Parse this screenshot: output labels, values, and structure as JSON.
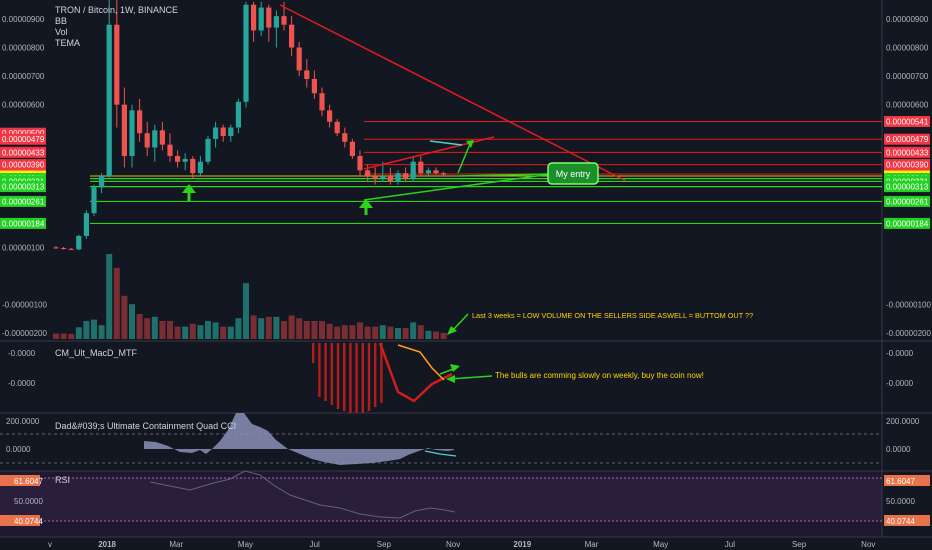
{
  "title": "TRON / Bitcoin, 1W, BINANCE",
  "overlays": [
    "BB",
    "Vol",
    "TEMA"
  ],
  "colors": {
    "bg": "#131722",
    "up": "#26a69a",
    "down": "#ef5350",
    "vol_up": "#1f6f6a",
    "vol_down": "#7a2d33",
    "green_line": "#2bd41b",
    "red_line": "#e21b1b",
    "badge_red": "#f23645",
    "badge_yellow": "#ffea00",
    "badge_green": "#22d122",
    "annotation": "#ffd500",
    "macd_bar": "#b71c1c",
    "cci_fill": "#8a91b5",
    "rsi_band": "#2a1e3d"
  },
  "axis": {
    "price_ticks": [
      "0.00000900",
      "0.00000800",
      "0.00000700",
      "0.00000600",
      "-0.00000100",
      "-0.00000200"
    ],
    "price_labels": [
      {
        "value": "0.00000541",
        "color": "red"
      },
      {
        "value": "0.00000479",
        "color": "red"
      },
      {
        "value": "0.00000433",
        "color": "red"
      },
      {
        "value": "0.00000390",
        "color": "red"
      },
      {
        "value": "0.00000357",
        "color": "red"
      },
      {
        "value": "0.00000350",
        "color": "yellow"
      },
      {
        "value": "0.00000341",
        "color": "green"
      },
      {
        "value": "0.00000331",
        "color": "green"
      },
      {
        "value": "0.00000313",
        "color": "green"
      },
      {
        "value": "0.00000261",
        "color": "green"
      },
      {
        "value": "0.00000184",
        "color": "green"
      }
    ],
    "left_partial_labels": [
      "0.00000900",
      "0.00000800",
      "0.00000700",
      "0.00000600",
      "0.00000500",
      "0.00000479",
      "0.00000433",
      "0.00000390",
      "0.00000357",
      "0.00000350",
      "0.00000341",
      "0.00000331",
      "0.00000313",
      "0.00000261",
      "0.00000184",
      "0.00000100",
      "-0.00000100",
      "-0.00000200"
    ],
    "time_labels": [
      "v",
      "2018",
      "Mar",
      "May",
      "Jul",
      "Sep",
      "Nov",
      "2019",
      "Mar",
      "May",
      "Jul",
      "Sep",
      "Nov"
    ],
    "time_labels_bold": [
      "2018",
      "2019"
    ]
  },
  "macd": {
    "name": "CM_Ult_MacD_MTF",
    "ticks": [
      "-0.0000",
      "-0.0000"
    ]
  },
  "cci": {
    "name": "Dad&#039;s Ultimate Containment Quad CCI",
    "ticks": [
      "200.0000",
      "0.0000"
    ]
  },
  "rsi": {
    "name": "RSI",
    "ticks": [
      "61.6047",
      "50.0000",
      "40.0744"
    ]
  },
  "annotations": {
    "volume_note": "Last 3 weeks = LOW VOLUME ON THE SELLERS SIDE ASWELL  = BUTTOM OUT ??",
    "macd_note": "The bulls are comming slowly on weekly, buy the coin now!",
    "entry_label": "My entry"
  },
  "chart_data": {
    "type": "candlestick",
    "title": "TRON / Bitcoin, 1W, BINANCE",
    "unit": "BTC",
    "candles": [
      {
        "t": "2017-11-06",
        "o": 1e-06,
        "h": 1.05e-06,
        "l": 9.5e-07,
        "c": 9.8e-07
      },
      {
        "t": "2017-11-13",
        "o": 9.8e-07,
        "h": 1.02e-06,
        "l": 9.2e-07,
        "c": 9.5e-07
      },
      {
        "t": "2017-11-20",
        "o": 9.5e-07,
        "h": 9.8e-07,
        "l": 9e-07,
        "c": 9.3e-07
      },
      {
        "t": "2017-11-27",
        "o": 9.3e-07,
        "h": 1.45e-06,
        "l": 9e-07,
        "c": 1.4e-06
      },
      {
        "t": "2017-12-04",
        "o": 1.4e-06,
        "h": 2.3e-06,
        "l": 1.3e-06,
        "c": 2.2e-06
      },
      {
        "t": "2017-12-11",
        "o": 2.2e-06,
        "h": 3.2e-06,
        "l": 2.1e-06,
        "c": 3.1e-06
      },
      {
        "t": "2017-12-18",
        "o": 3.1e-06,
        "h": 3.6e-06,
        "l": 2.9e-06,
        "c": 3.5e-06
      },
      {
        "t": "2017-12-25",
        "o": 3.5e-06,
        "h": 1e-05,
        "l": 3.4e-06,
        "c": 8.8e-06
      },
      {
        "t": "2018-01-01",
        "o": 8.8e-06,
        "h": 1e-05,
        "l": 5.2e-06,
        "c": 6e-06
      },
      {
        "t": "2018-01-08",
        "o": 6e-06,
        "h": 6.6e-06,
        "l": 3.8e-06,
        "c": 4.2e-06
      },
      {
        "t": "2018-01-15",
        "o": 4.2e-06,
        "h": 6e-06,
        "l": 3.8e-06,
        "c": 5.8e-06
      },
      {
        "t": "2018-01-22",
        "o": 5.8e-06,
        "h": 6.2e-06,
        "l": 4.7e-06,
        "c": 5e-06
      },
      {
        "t": "2018-01-29",
        "o": 5e-06,
        "h": 5.4e-06,
        "l": 4.2e-06,
        "c": 4.5e-06
      },
      {
        "t": "2018-02-05",
        "o": 4.5e-06,
        "h": 5.3e-06,
        "l": 4e-06,
        "c": 5.1e-06
      },
      {
        "t": "2018-02-12",
        "o": 5.1e-06,
        "h": 5.4e-06,
        "l": 4.4e-06,
        "c": 4.6e-06
      },
      {
        "t": "2018-02-19",
        "o": 4.6e-06,
        "h": 5e-06,
        "l": 4e-06,
        "c": 4.2e-06
      },
      {
        "t": "2018-02-26",
        "o": 4.2e-06,
        "h": 4.4e-06,
        "l": 3.8e-06,
        "c": 4e-06
      },
      {
        "t": "2018-03-05",
        "o": 4e-06,
        "h": 4.3e-06,
        "l": 3.7e-06,
        "c": 4.1e-06
      },
      {
        "t": "2018-03-12",
        "o": 4.1e-06,
        "h": 4.2e-06,
        "l": 3.4e-06,
        "c": 3.6e-06
      },
      {
        "t": "2018-03-19",
        "o": 3.6e-06,
        "h": 4.2e-06,
        "l": 3.5e-06,
        "c": 4e-06
      },
      {
        "t": "2018-03-26",
        "o": 4e-06,
        "h": 4.9e-06,
        "l": 3.9e-06,
        "c": 4.8e-06
      },
      {
        "t": "2018-04-02",
        "o": 4.8e-06,
        "h": 5.4e-06,
        "l": 4.5e-06,
        "c": 5.2e-06
      },
      {
        "t": "2018-04-09",
        "o": 5.2e-06,
        "h": 5.3e-06,
        "l": 4.7e-06,
        "c": 4.9e-06
      },
      {
        "t": "2018-04-16",
        "o": 4.9e-06,
        "h": 5.3e-06,
        "l": 4.7e-06,
        "c": 5.2e-06
      },
      {
        "t": "2018-04-23",
        "o": 5.2e-06,
        "h": 6.2e-06,
        "l": 5e-06,
        "c": 6.1e-06
      },
      {
        "t": "2018-04-30",
        "o": 6.1e-06,
        "h": 9.6e-06,
        "l": 5.9e-06,
        "c": 9.5e-06
      },
      {
        "t": "2018-05-07",
        "o": 9.5e-06,
        "h": 9.6e-06,
        "l": 8.2e-06,
        "c": 8.6e-06
      },
      {
        "t": "2018-05-14",
        "o": 8.6e-06,
        "h": 9.6e-06,
        "l": 8.4e-06,
        "c": 9.4e-06
      },
      {
        "t": "2018-05-21",
        "o": 9.4e-06,
        "h": 9.5e-06,
        "l": 8.2e-06,
        "c": 8.7e-06
      },
      {
        "t": "2018-05-28",
        "o": 8.7e-06,
        "h": 9.3e-06,
        "l": 8e-06,
        "c": 9.1e-06
      },
      {
        "t": "2018-06-04",
        "o": 9.1e-06,
        "h": 9.6e-06,
        "l": 8.6e-06,
        "c": 8.8e-06
      },
      {
        "t": "2018-06-11",
        "o": 8.8e-06,
        "h": 9.1e-06,
        "l": 7.7e-06,
        "c": 8e-06
      },
      {
        "t": "2018-06-18",
        "o": 8e-06,
        "h": 8.2e-06,
        "l": 7e-06,
        "c": 7.2e-06
      },
      {
        "t": "2018-06-25",
        "o": 7.2e-06,
        "h": 7.6e-06,
        "l": 6.6e-06,
        "c": 6.9e-06
      },
      {
        "t": "2018-07-02",
        "o": 6.9e-06,
        "h": 7.2e-06,
        "l": 6.2e-06,
        "c": 6.4e-06
      },
      {
        "t": "2018-07-09",
        "o": 6.4e-06,
        "h": 6.6e-06,
        "l": 5.6e-06,
        "c": 5.8e-06
      },
      {
        "t": "2018-07-16",
        "o": 5.8e-06,
        "h": 6e-06,
        "l": 5.2e-06,
        "c": 5.4e-06
      },
      {
        "t": "2018-07-23",
        "o": 5.4e-06,
        "h": 5.5e-06,
        "l": 4.9e-06,
        "c": 5e-06
      },
      {
        "t": "2018-07-30",
        "o": 5e-06,
        "h": 5.2e-06,
        "l": 4.5e-06,
        "c": 4.7e-06
      },
      {
        "t": "2018-08-06",
        "o": 4.7e-06,
        "h": 4.8e-06,
        "l": 4.1e-06,
        "c": 4.2e-06
      },
      {
        "t": "2018-08-13",
        "o": 4.2e-06,
        "h": 4.4e-06,
        "l": 3.5e-06,
        "c": 3.7e-06
      },
      {
        "t": "2018-08-20",
        "o": 3.7e-06,
        "h": 3.9e-06,
        "l": 3.3e-06,
        "c": 3.5e-06
      },
      {
        "t": "2018-08-27",
        "o": 3.5e-06,
        "h": 3.8e-06,
        "l": 3.2e-06,
        "c": 3.4e-06
      },
      {
        "t": "2018-09-03",
        "o": 3.4e-06,
        "h": 4e-06,
        "l": 3.3e-06,
        "c": 3.5e-06
      },
      {
        "t": "2018-09-10",
        "o": 3.5e-06,
        "h": 3.8e-06,
        "l": 3.2e-06,
        "c": 3.3e-06
      },
      {
        "t": "2018-09-17",
        "o": 3.3e-06,
        "h": 3.7e-06,
        "l": 3.2e-06,
        "c": 3.6e-06
      },
      {
        "t": "2018-09-24",
        "o": 3.6e-06,
        "h": 3.8e-06,
        "l": 3.3e-06,
        "c": 3.4e-06
      },
      {
        "t": "2018-10-01",
        "o": 3.4e-06,
        "h": 4.2e-06,
        "l": 3.3e-06,
        "c": 4e-06
      },
      {
        "t": "2018-10-08",
        "o": 4e-06,
        "h": 4.2e-06,
        "l": 3.5e-06,
        "c": 3.6e-06
      },
      {
        "t": "2018-10-15",
        "o": 3.6e-06,
        "h": 3.8e-06,
        "l": 3.5e-06,
        "c": 3.7e-06
      },
      {
        "t": "2018-10-22",
        "o": 3.7e-06,
        "h": 3.8e-06,
        "l": 3.55e-06,
        "c": 3.6e-06
      },
      {
        "t": "2018-10-29",
        "o": 3.6e-06,
        "h": 3.65e-06,
        "l": 3.5e-06,
        "c": 3.55e-06
      }
    ],
    "horizontal_levels": {
      "resistance": [
        5.41e-06,
        4.79e-06,
        4.33e-06,
        3.9e-06,
        3.57e-06
      ],
      "current": 3.5e-06,
      "support": [
        3.41e-06,
        3.31e-06,
        3.13e-06,
        2.61e-06,
        1.84e-06
      ]
    },
    "ylim": [
      -2.1e-06,
      9.8e-06
    ]
  }
}
